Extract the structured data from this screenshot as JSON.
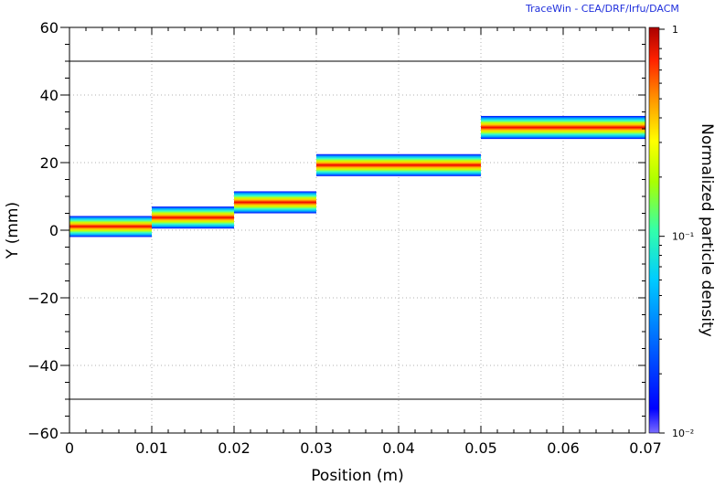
{
  "credit": "TraceWin - CEA/DRF/Irfu/DACM",
  "chart_data": {
    "type": "heatmap",
    "title": "",
    "xlabel": "Position (m)",
    "ylabel": "Y (mm)",
    "colorbar_label": "Normalized particle density",
    "xlim": [
      0,
      0.07
    ],
    "ylim": [
      -60,
      60
    ],
    "x_ticks": [
      0,
      0.01,
      0.02,
      0.03,
      0.04,
      0.05,
      0.06,
      0.07
    ],
    "x_tick_labels": [
      "0",
      "0.01",
      "0.02",
      "0.03",
      "0.04",
      "0.05",
      "0.06",
      "0.07"
    ],
    "y_ticks": [
      -60,
      -40,
      -20,
      0,
      20,
      40,
      60
    ],
    "y_tick_labels": [
      "−60",
      "−40",
      "−20",
      "0",
      "20",
      "40",
      "60"
    ],
    "aperture_lines_mm": [
      50,
      -50
    ],
    "colorbar_scale": "log",
    "colorbar_range": [
      0.01,
      1
    ],
    "colorbar_ticks": [
      1,
      0.1,
      0.01
    ],
    "colorbar_tick_labels": [
      "1",
      "10⁻¹",
      "10⁻²"
    ],
    "grid": true,
    "bands": [
      {
        "x_start": 0.0,
        "x_end": 0.01,
        "y_min": -2.0,
        "y_max": 4.2,
        "y_center": 1.0
      },
      {
        "x_start": 0.01,
        "x_end": 0.02,
        "y_min": 0.5,
        "y_max": 7.0,
        "y_center": 3.8
      },
      {
        "x_start": 0.02,
        "x_end": 0.03,
        "y_min": 5.0,
        "y_max": 11.5,
        "y_center": 8.3
      },
      {
        "x_start": 0.03,
        "x_end": 0.05,
        "y_min": 16.0,
        "y_max": 22.5,
        "y_center": 19.2
      },
      {
        "x_start": 0.05,
        "x_end": 0.07,
        "y_min": 27.0,
        "y_max": 33.8,
        "y_center": 30.4
      }
    ]
  }
}
